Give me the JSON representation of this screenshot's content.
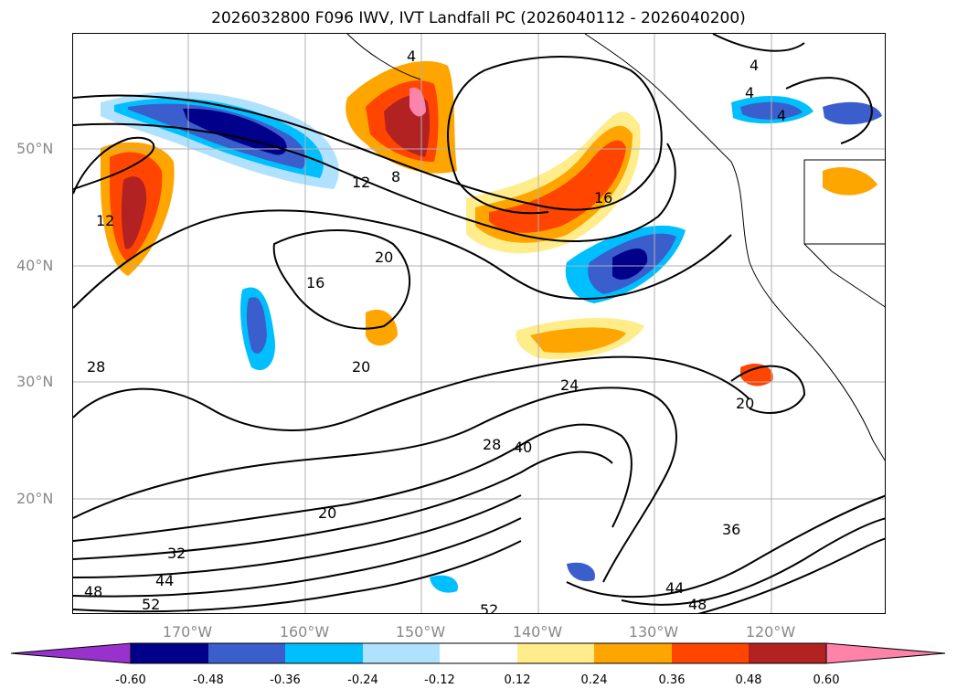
{
  "title": "2026032800 F096 IWV, IVT Landfall PC (2026040112 - 2026040200)",
  "lat_labels": [
    "50°N",
    "40°N",
    "30°N",
    "20°N"
  ],
  "lon_labels": [
    "170°W",
    "160°W",
    "150°W",
    "140°W",
    "130°W",
    "120°W"
  ],
  "contour_labels": [
    "4",
    "4",
    "4",
    "4",
    "8",
    "12",
    "12",
    "16",
    "16",
    "20",
    "20",
    "20",
    "20",
    "24",
    "28",
    "28",
    "32",
    "36",
    "40",
    "44",
    "44",
    "48",
    "48",
    "52",
    "52"
  ],
  "colorbar": {
    "ticks": [
      "-0.60",
      "-0.48",
      "-0.36",
      "-0.24",
      "-0.12",
      "0.12",
      "0.24",
      "0.36",
      "0.48",
      "0.60"
    ],
    "colors": [
      "#9932CC",
      "#00008B",
      "#3A5FCD",
      "#00BFFF",
      "#B0E2FF",
      "#FFFFFF",
      "#FFEC8B",
      "#FFA500",
      "#FF4500",
      "#B22222",
      "#FF82AB"
    ]
  }
}
